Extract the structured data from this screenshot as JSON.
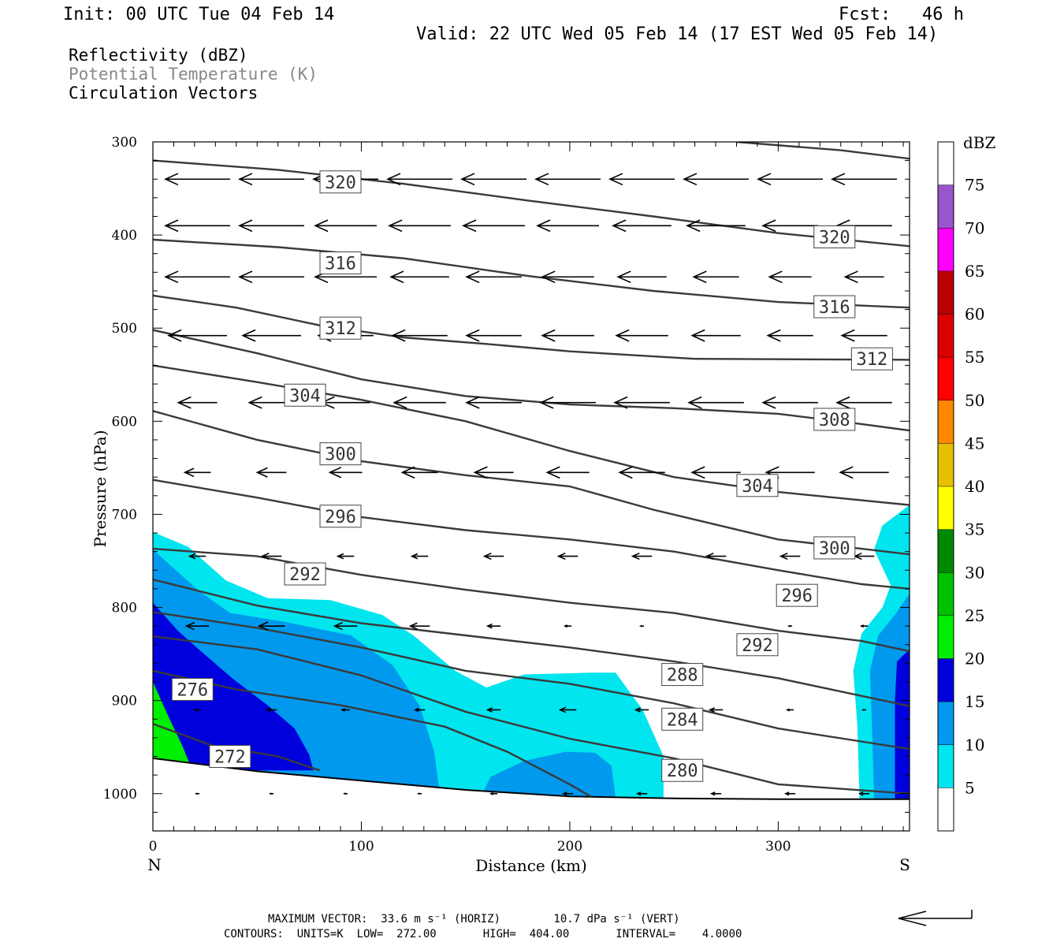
{
  "header": {
    "init": "Init: 00 UTC Tue 04 Feb 14",
    "fcst": "Fcst:   46 h",
    "valid": "Valid: 22 UTC Wed 05 Feb 14 (17 EST Wed 05 Feb 14)"
  },
  "legend": {
    "reflectivity": "Reflectivity (dBZ)",
    "theta": "Potential Temperature (K)",
    "vectors": "Circulation Vectors"
  },
  "chart_data": {
    "type": "cross-section",
    "xlabel": "Distance (km)",
    "ylabel": "Pressure (hPa)",
    "xlim": [
      0,
      363
    ],
    "ylim": [
      1040,
      300
    ],
    "xticks": [
      0,
      100,
      200,
      300
    ],
    "yticks": [
      300,
      400,
      500,
      600,
      700,
      800,
      900,
      1000
    ],
    "left_end_label": "N",
    "right_end_label": "S",
    "colorbar": {
      "title": "dBZ",
      "levels": [
        5,
        10,
        15,
        20,
        25,
        30,
        35,
        40,
        45,
        50,
        55,
        60,
        65,
        70,
        75
      ],
      "colors": [
        "#ffffff",
        "#00e5ee",
        "#0099ee",
        "#0000dd",
        "#00ee00",
        "#00c000",
        "#008800",
        "#ffff00",
        "#e5c000",
        "#ff8800",
        "#ff0000",
        "#dd0000",
        "#bb0000",
        "#ff00ff",
        "#9955cc",
        "#ffffff"
      ]
    },
    "reflectivity_fill": [
      {
        "dbz": 5,
        "color": "#00e5ee",
        "polygon": [
          [
            0,
            719
          ],
          [
            17,
            735
          ],
          [
            35,
            771
          ],
          [
            55,
            790
          ],
          [
            85,
            792
          ],
          [
            110,
            808
          ],
          [
            125,
            830
          ],
          [
            145,
            868
          ],
          [
            160,
            886
          ],
          [
            178,
            872
          ],
          [
            210,
            870
          ],
          [
            222,
            870
          ],
          [
            235,
            910
          ],
          [
            245,
            960
          ],
          [
            245,
            1005
          ],
          [
            0,
            1005
          ]
        ]
      },
      {
        "dbz": 5,
        "color": "#00e5ee",
        "polygon": [
          [
            363,
            690
          ],
          [
            350,
            712
          ],
          [
            346,
            738
          ],
          [
            354,
            776
          ],
          [
            350,
            800
          ],
          [
            340,
            828
          ],
          [
            336,
            868
          ],
          [
            338,
            928
          ],
          [
            339,
            1005
          ],
          [
            363,
            1005
          ]
        ]
      },
      {
        "dbz": 10,
        "color": "#0099ee",
        "polygon": [
          [
            0,
            738
          ],
          [
            22,
            782
          ],
          [
            37,
            806
          ],
          [
            62,
            815
          ],
          [
            95,
            830
          ],
          [
            115,
            862
          ],
          [
            128,
            906
          ],
          [
            135,
            955
          ],
          [
            137,
            990
          ],
          [
            140,
            1005
          ],
          [
            0,
            1005
          ]
        ]
      },
      {
        "dbz": 10,
        "color": "#0099ee",
        "polygon": [
          [
            158,
            1000
          ],
          [
            162,
            982
          ],
          [
            178,
            965
          ],
          [
            198,
            955
          ],
          [
            212,
            956
          ],
          [
            220,
            970
          ],
          [
            222,
            1005
          ],
          [
            158,
            1005
          ]
        ]
      },
      {
        "dbz": 10,
        "color": "#0099ee",
        "polygon": [
          [
            363,
            785
          ],
          [
            356,
            808
          ],
          [
            348,
            830
          ],
          [
            344,
            868
          ],
          [
            345,
            928
          ],
          [
            346,
            1005
          ],
          [
            363,
            1005
          ]
        ]
      },
      {
        "dbz": 15,
        "color": "#0000dd",
        "polygon": [
          [
            0,
            795
          ],
          [
            12,
            825
          ],
          [
            22,
            845
          ],
          [
            38,
            876
          ],
          [
            55,
            905
          ],
          [
            68,
            930
          ],
          [
            75,
            958
          ],
          [
            77,
            975
          ],
          [
            0,
            975
          ]
        ]
      },
      {
        "dbz": 15,
        "color": "#0000dd",
        "polygon": [
          [
            363,
            845
          ],
          [
            357,
            858
          ],
          [
            356,
            900
          ],
          [
            356,
            1005
          ],
          [
            363,
            1005
          ]
        ]
      },
      {
        "dbz": 20,
        "color": "#00ee00",
        "polygon": [
          [
            0,
            880
          ],
          [
            8,
            920
          ],
          [
            14,
            948
          ],
          [
            18,
            970
          ],
          [
            0,
            970
          ]
        ]
      }
    ],
    "ground_pressure": [
      [
        0,
        962
      ],
      [
        50,
        976
      ],
      [
        100,
        986
      ],
      [
        150,
        996
      ],
      [
        200,
        1003
      ],
      [
        250,
        1005
      ],
      [
        300,
        1006
      ],
      [
        363,
        1006
      ]
    ],
    "theta_contours": [
      {
        "theta": 320,
        "points": [
          [
            0,
            320
          ],
          [
            60,
            330
          ],
          [
            120,
            345
          ],
          [
            180,
            363
          ],
          [
            240,
            380
          ],
          [
            300,
            398
          ],
          [
            363,
            412
          ]
        ]
      },
      {
        "theta": 324,
        "points": [
          [
            280,
            300
          ],
          [
            330,
            309
          ],
          [
            363,
            318
          ]
        ]
      },
      {
        "theta": 316,
        "points": [
          [
            0,
            405
          ],
          [
            60,
            413
          ],
          [
            120,
            425
          ],
          [
            180,
            444
          ],
          [
            240,
            460
          ],
          [
            300,
            472
          ],
          [
            363,
            478
          ]
        ]
      },
      {
        "theta": 312,
        "points": [
          [
            0,
            465
          ],
          [
            40,
            478
          ],
          [
            80,
            497
          ],
          [
            120,
            510
          ],
          [
            160,
            517
          ],
          [
            200,
            525
          ],
          [
            260,
            533
          ],
          [
            363,
            534
          ]
        ]
      },
      {
        "theta": 308,
        "points": [
          [
            0,
            502
          ],
          [
            50,
            527
          ],
          [
            100,
            555
          ],
          [
            150,
            573
          ],
          [
            200,
            582
          ],
          [
            250,
            586
          ],
          [
            300,
            592
          ],
          [
            340,
            603
          ],
          [
            363,
            610
          ]
        ]
      },
      {
        "theta": 304,
        "points": [
          [
            0,
            540
          ],
          [
            50,
            558
          ],
          [
            100,
            577
          ],
          [
            150,
            600
          ],
          [
            200,
            632
          ],
          [
            250,
            660
          ],
          [
            300,
            676
          ],
          [
            363,
            690
          ]
        ]
      },
      {
        "theta": 300,
        "points": [
          [
            0,
            589
          ],
          [
            50,
            620
          ],
          [
            100,
            643
          ],
          [
            150,
            658
          ],
          [
            200,
            670
          ],
          [
            240,
            695
          ],
          [
            300,
            727
          ],
          [
            340,
            737
          ],
          [
            363,
            743
          ]
        ]
      },
      {
        "theta": 296,
        "points": [
          [
            0,
            663
          ],
          [
            50,
            682
          ],
          [
            100,
            703
          ],
          [
            150,
            717
          ],
          [
            200,
            727
          ],
          [
            250,
            740
          ],
          [
            300,
            760
          ],
          [
            340,
            775
          ],
          [
            363,
            780
          ]
        ]
      },
      {
        "theta": 292,
        "points": [
          [
            0,
            737
          ],
          [
            50,
            745
          ],
          [
            100,
            765
          ],
          [
            150,
            781
          ],
          [
            200,
            795
          ],
          [
            250,
            806
          ],
          [
            300,
            825
          ],
          [
            340,
            836
          ],
          [
            363,
            847
          ]
        ]
      },
      {
        "theta": 288,
        "points": [
          [
            0,
            770
          ],
          [
            50,
            798
          ],
          [
            100,
            817
          ],
          [
            150,
            830
          ],
          [
            200,
            843
          ],
          [
            250,
            858
          ],
          [
            300,
            876
          ],
          [
            363,
            906
          ]
        ]
      },
      {
        "theta": 284,
        "points": [
          [
            0,
            805
          ],
          [
            50,
            822
          ],
          [
            100,
            843
          ],
          [
            150,
            868
          ],
          [
            200,
            882
          ],
          [
            250,
            903
          ],
          [
            300,
            930
          ],
          [
            363,
            952
          ]
        ]
      },
      {
        "theta": 280,
        "points": [
          [
            0,
            831
          ],
          [
            50,
            845
          ],
          [
            100,
            873
          ],
          [
            150,
            912
          ],
          [
            200,
            941
          ],
          [
            250,
            962
          ],
          [
            300,
            990
          ],
          [
            363,
            1000
          ]
        ]
      },
      {
        "theta": 276,
        "points": [
          [
            0,
            868
          ],
          [
            40,
            888
          ],
          [
            90,
            905
          ],
          [
            140,
            928
          ],
          [
            170,
            955
          ],
          [
            200,
            990
          ],
          [
            210,
            1003
          ]
        ]
      },
      {
        "theta": 272,
        "points": [
          [
            0,
            925
          ],
          [
            28,
            948
          ],
          [
            60,
            960
          ],
          [
            80,
            975
          ]
        ]
      }
    ],
    "contour_labels": [
      {
        "text": "320",
        "x": 90,
        "p": 343
      },
      {
        "text": "320",
        "x": 327,
        "p": 402
      },
      {
        "text": "316",
        "x": 90,
        "p": 430
      },
      {
        "text": "316",
        "x": 327,
        "p": 477
      },
      {
        "text": "312",
        "x": 90,
        "p": 500
      },
      {
        "text": "312",
        "x": 345,
        "p": 533
      },
      {
        "text": "304",
        "x": 73,
        "p": 572
      },
      {
        "text": "308",
        "x": 327,
        "p": 598
      },
      {
        "text": "300",
        "x": 90,
        "p": 635
      },
      {
        "text": "304",
        "x": 290,
        "p": 669
      },
      {
        "text": "296",
        "x": 90,
        "p": 702
      },
      {
        "text": "300",
        "x": 327,
        "p": 736
      },
      {
        "text": "292",
        "x": 73,
        "p": 764
      },
      {
        "text": "296",
        "x": 309,
        "p": 787
      },
      {
        "text": "292",
        "x": 290,
        "p": 840
      },
      {
        "text": "288",
        "x": 254,
        "p": 872
      },
      {
        "text": "276",
        "x": 19,
        "p": 888
      },
      {
        "text": "284",
        "x": 254,
        "p": 920
      },
      {
        "text": "272",
        "x": 37,
        "p": 960
      },
      {
        "text": "280",
        "x": 254,
        "p": 975
      }
    ],
    "vectors": [
      {
        "rows": [
          340,
          390,
          445,
          508,
          580,
          655,
          745,
          820,
          910,
          1000
        ],
        "u": [
          [
            -1.0,
            -1.0,
            -1.0,
            -1.0,
            -1.0,
            -1.0,
            -1.0,
            -1.0,
            -1.0,
            -1.0
          ],
          [
            -1.0,
            -1.0,
            -0.95,
            -0.95,
            -0.95,
            -0.95,
            -0.9,
            -0.9,
            -0.85,
            -0.85
          ],
          [
            -1.0,
            -1.0,
            -0.95,
            -0.9,
            -0.85,
            -0.8,
            -0.75,
            -0.7,
            -0.65,
            -0.6
          ],
          [
            -0.9,
            -0.9,
            -0.85,
            -0.85,
            -0.85,
            -0.8,
            -0.8,
            -0.75,
            -0.7,
            -0.7
          ],
          [
            -0.6,
            -0.7,
            -0.75,
            -0.8,
            -0.85,
            -0.85,
            -0.85,
            -0.85,
            -0.85,
            -0.85
          ],
          [
            -0.4,
            -0.45,
            -0.5,
            -0.55,
            -0.6,
            -0.65,
            -0.7,
            -0.75,
            -0.75,
            -0.75
          ],
          [
            -0.25,
            -0.3,
            -0.25,
            -0.25,
            -0.3,
            -0.3,
            -0.3,
            -0.3,
            -0.3,
            -0.3
          ],
          [
            -0.35,
            -0.4,
            -0.35,
            -0.3,
            -0.2,
            -0.1,
            -0.05,
            0,
            -0.05,
            -0.1
          ],
          [
            -0.1,
            -0.15,
            -0.12,
            -0.15,
            -0.2,
            -0.25,
            -0.2,
            -0.2,
            -0.1,
            -0.05
          ],
          [
            -0.05,
            -0.05,
            -0.05,
            -0.05,
            -0.1,
            -0.15,
            -0.15,
            -0.15,
            -0.15,
            -0.15
          ]
        ]
      }
    ],
    "reference_vector_label": "33.6"
  },
  "footer": {
    "line1": "MAXIMUM VECTOR:  33.6 m s⁻¹ (HORIZ)        10.7 dPa s⁻¹ (VERT)",
    "line2": "CONTOURS:  UNITS=K  LOW=  272.00       HIGH=  404.00       INTERVAL=    4.0000"
  }
}
